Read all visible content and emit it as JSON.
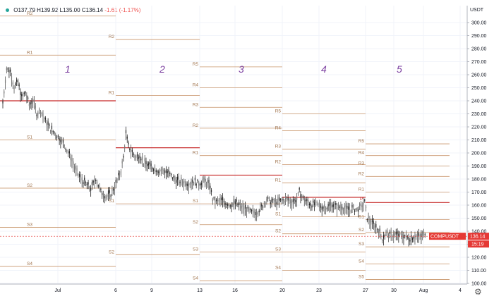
{
  "legend_bar": {
    "open": "O137.79",
    "high": "H139.92",
    "low": "L135.00",
    "close": "C136.14",
    "change": "-1.61 (-1.17%)"
  },
  "currency": "USDT",
  "symbol_tag": "COMPUSDT",
  "last_price_tag": "136.14",
  "countdown_tag": "15:19",
  "settings_icon": "gear-icon",
  "colors": {
    "candle_up": "#26a69a",
    "candle_down": "#222222",
    "pivot_line": "#c8946a",
    "pivot_main": "#c62828",
    "week_number": "#7b3fa0",
    "price_tag": "#e53935"
  },
  "chart_data": {
    "type": "candlestick",
    "title": "",
    "ylabel": "",
    "xlabel": "",
    "ylim": [
      100,
      310
    ],
    "y_ticks": [
      100,
      110,
      120,
      130,
      140,
      150,
      160,
      170,
      180,
      190,
      200,
      210,
      220,
      230,
      240,
      250,
      260,
      270,
      280,
      290,
      300
    ],
    "x_tick_labels": [
      "Jul",
      "6",
      "9",
      "13",
      "16",
      "20",
      "23",
      "27",
      "30",
      "Aug",
      "4"
    ],
    "grid": true,
    "week_labels": [
      "1",
      "2",
      "3",
      "4",
      "5"
    ],
    "pivot_levels": [
      {
        "week": 1,
        "levels": [
          {
            "label": "R2",
            "value": 305
          },
          {
            "label": "R1",
            "value": 275
          },
          {
            "label": "P",
            "value": 240
          },
          {
            "label": "S1",
            "value": 210
          },
          {
            "label": "S2",
            "value": 173
          },
          {
            "label": "S3",
            "value": 143
          },
          {
            "label": "S4",
            "value": 113
          }
        ]
      },
      {
        "week": 2,
        "levels": [
          {
            "label": "R2",
            "value": 287
          },
          {
            "label": "R1",
            "value": 244
          },
          {
            "label": "P",
            "value": 204
          },
          {
            "label": "S1",
            "value": 161
          },
          {
            "label": "S2",
            "value": 122
          }
        ]
      },
      {
        "week": 3,
        "levels": [
          {
            "label": "R5",
            "value": 266
          },
          {
            "label": "R4",
            "value": 250
          },
          {
            "label": "R3",
            "value": 235
          },
          {
            "label": "R2",
            "value": 219
          },
          {
            "label": "R1",
            "value": 198
          },
          {
            "label": "P",
            "value": 183
          },
          {
            "label": "S1",
            "value": 161
          },
          {
            "label": "S2",
            "value": 145
          },
          {
            "label": "S3",
            "value": 124
          },
          {
            "label": "S4",
            "value": 102
          }
        ]
      },
      {
        "week": 4,
        "levels": [
          {
            "label": "R5",
            "value": 230
          },
          {
            "label": "R4",
            "value": 217
          },
          {
            "label": "R3",
            "value": 203
          },
          {
            "label": "R2",
            "value": 191
          },
          {
            "label": "R1",
            "value": 177
          },
          {
            "label": "P",
            "value": 166
          },
          {
            "label": "S1",
            "value": 151
          },
          {
            "label": "S2",
            "value": 138
          },
          {
            "label": "S3",
            "value": 124
          },
          {
            "label": "S4",
            "value": 110
          }
        ]
      },
      {
        "week": 5,
        "levels": [
          {
            "label": "R5",
            "value": 207
          },
          {
            "label": "R4",
            "value": 198
          },
          {
            "label": "R3",
            "value": 190
          },
          {
            "label": "R2",
            "value": 182
          },
          {
            "label": "R1",
            "value": 170
          },
          {
            "label": "P",
            "value": 162
          },
          {
            "label": "S1",
            "value": 149
          },
          {
            "label": "S2",
            "value": 139
          },
          {
            "label": "S3",
            "value": 128
          },
          {
            "label": "S4",
            "value": 115
          },
          {
            "label": "S5",
            "value": 103
          }
        ]
      }
    ],
    "price_path": [
      [
        0,
        238
      ],
      [
        3,
        264
      ],
      [
        6,
        262
      ],
      [
        9,
        250
      ],
      [
        12,
        254
      ],
      [
        15,
        242
      ],
      [
        18,
        246
      ],
      [
        21,
        236
      ],
      [
        24,
        240
      ],
      [
        27,
        230
      ],
      [
        30,
        232
      ],
      [
        34,
        224
      ],
      [
        38,
        218
      ],
      [
        42,
        214
      ],
      [
        46,
        210
      ],
      [
        50,
        204
      ],
      [
        54,
        196
      ],
      [
        58,
        186
      ],
      [
        62,
        180
      ],
      [
        66,
        176
      ],
      [
        70,
        172
      ],
      [
        74,
        180
      ],
      [
        78,
        170
      ],
      [
        82,
        166
      ],
      [
        86,
        168
      ],
      [
        90,
        176
      ],
      [
        94,
        186
      ],
      [
        96,
        196
      ],
      [
        98,
        214
      ],
      [
        100,
        205
      ],
      [
        103,
        200
      ],
      [
        106,
        196
      ],
      [
        109,
        198
      ],
      [
        112,
        192
      ],
      [
        116,
        190
      ],
      [
        120,
        188
      ],
      [
        124,
        186
      ],
      [
        128,
        186
      ],
      [
        132,
        184
      ],
      [
        136,
        180
      ],
      [
        140,
        178
      ],
      [
        144,
        177
      ],
      [
        148,
        176
      ],
      [
        152,
        178
      ],
      [
        156,
        176
      ],
      [
        160,
        178
      ],
      [
        163,
        176
      ],
      [
        165,
        174
      ],
      [
        167,
        164
      ],
      [
        170,
        162
      ],
      [
        174,
        163
      ],
      [
        178,
        161
      ],
      [
        182,
        160
      ],
      [
        186,
        161
      ],
      [
        190,
        158
      ],
      [
        194,
        156
      ],
      [
        198,
        154
      ],
      [
        202,
        154
      ],
      [
        206,
        158
      ],
      [
        210,
        164
      ],
      [
        214,
        162
      ],
      [
        218,
        162
      ],
      [
        222,
        163
      ],
      [
        226,
        164
      ],
      [
        230,
        162
      ],
      [
        234,
        164
      ],
      [
        236,
        170
      ],
      [
        238,
        166
      ],
      [
        242,
        162
      ],
      [
        246,
        160
      ],
      [
        250,
        160
      ],
      [
        254,
        158
      ],
      [
        258,
        158
      ],
      [
        262,
        160
      ],
      [
        266,
        158
      ],
      [
        270,
        158
      ],
      [
        274,
        156
      ],
      [
        278,
        157
      ],
      [
        282,
        156
      ],
      [
        285,
        158
      ],
      [
        288,
        162
      ],
      [
        290,
        150
      ],
      [
        293,
        146
      ],
      [
        296,
        144
      ],
      [
        299,
        140
      ],
      [
        302,
        134
      ],
      [
        305,
        138
      ],
      [
        308,
        136
      ],
      [
        312,
        137
      ],
      [
        316,
        136
      ],
      [
        320,
        136
      ],
      [
        324,
        134
      ],
      [
        328,
        136
      ],
      [
        331,
        135
      ],
      [
        334,
        136
      ],
      [
        337,
        140
      ]
    ],
    "path_x_max": 337
  }
}
